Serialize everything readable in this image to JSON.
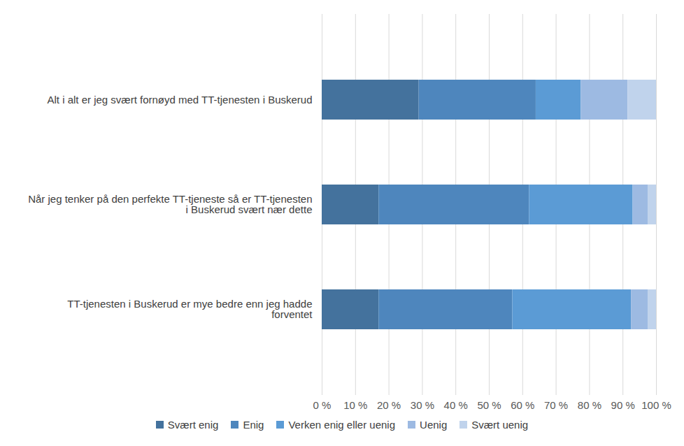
{
  "chart_data": {
    "type": "bar",
    "orientation": "horizontal",
    "stacked": true,
    "categories": [
      "Alt i alt er jeg svært fornøyd med TT-tjenesten i Buskerud",
      "Når jeg tenker på den perfekte TT-tjeneste så er TT-tjenesten i Buskerud svært nær dette",
      "TT-tjenesten i Buskerud er mye bedre enn jeg hadde forventet"
    ],
    "series": [
      {
        "name": "Svært enig",
        "color": "#44729d",
        "values": [
          29,
          17,
          17
        ]
      },
      {
        "name": "Enig",
        "color": "#4e86bd",
        "values": [
          35,
          45,
          40
        ]
      },
      {
        "name": "Verken enig eller uenig",
        "color": "#5b9bd5",
        "values": [
          13.5,
          31,
          35.5
        ]
      },
      {
        "name": "Uenig",
        "color": "#9dbae2",
        "values": [
          14,
          4.5,
          5
        ]
      },
      {
        "name": "Svært uenig",
        "color": "#c0d3ec",
        "values": [
          8.5,
          2.5,
          2.5
        ]
      }
    ],
    "xlim": [
      0,
      100
    ],
    "xticks": [
      {
        "value": 0,
        "label": "0 %"
      },
      {
        "value": 10,
        "label": "10 %"
      },
      {
        "value": 20,
        "label": "20 %"
      },
      {
        "value": 30,
        "label": "30 %"
      },
      {
        "value": 40,
        "label": "40 %"
      },
      {
        "value": 50,
        "label": "50 %"
      },
      {
        "value": 60,
        "label": "60 %"
      },
      {
        "value": 70,
        "label": "70 %"
      },
      {
        "value": 80,
        "label": "80 %"
      },
      {
        "value": 90,
        "label": "90 %"
      },
      {
        "value": 100,
        "label": "100 %"
      }
    ],
    "grid": true,
    "legend": "bottom"
  }
}
